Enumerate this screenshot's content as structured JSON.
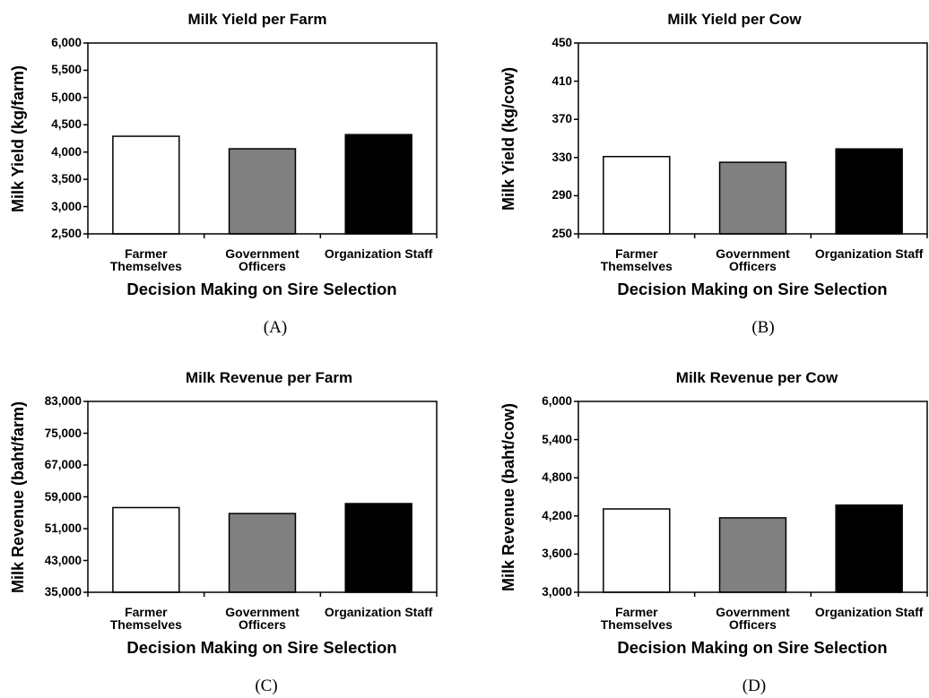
{
  "chart_data": [
    {
      "type": "bar",
      "title": "Milk Yield per Farm",
      "xlabel": "Decision Making on Sire Selection",
      "ylabel": "Milk Yield (kg/farm)",
      "caption": "(A)",
      "categories": [
        "Farmer Themselves",
        "Government Officers",
        "Organization Staff"
      ],
      "values": [
        4290,
        4060,
        4320
      ],
      "colors": [
        "#ffffff",
        "#808080",
        "#000000"
      ],
      "ylim": [
        2500,
        6000
      ],
      "yticks": [
        2500,
        3000,
        3500,
        4000,
        4500,
        5000,
        5500,
        6000
      ],
      "ytick_labels": [
        "2,500",
        "3,000",
        "3,500",
        "4,000",
        "4,500",
        "5,000",
        "5,500",
        "6,000"
      ],
      "grid": false
    },
    {
      "type": "bar",
      "title": "Milk Yield per Cow",
      "xlabel": "Decision Making on Sire Selection",
      "ylabel": "Milk Yield (kg/cow)",
      "caption": "(B)",
      "categories": [
        "Farmer Themselves",
        "Government Officers",
        "Organization Staff"
      ],
      "values": [
        331,
        325,
        339
      ],
      "colors": [
        "#ffffff",
        "#808080",
        "#000000"
      ],
      "ylim": [
        250,
        450
      ],
      "yticks": [
        250,
        290,
        330,
        370,
        410,
        450
      ],
      "ytick_labels": [
        "250",
        "290",
        "330",
        "370",
        "410",
        "450"
      ],
      "grid": false
    },
    {
      "type": "bar",
      "title": "Milk Revenue per Farm",
      "xlabel": "Decision Making on Sire Selection",
      "ylabel": "Milk Revenue (baht/farm)",
      "caption": "(C)",
      "categories": [
        "Farmer Themselves",
        "Government Officers",
        "Organization Staff"
      ],
      "values": [
        56300,
        54800,
        57300
      ],
      "colors": [
        "#ffffff",
        "#808080",
        "#000000"
      ],
      "ylim": [
        35000,
        83000
      ],
      "yticks": [
        35000,
        43000,
        51000,
        59000,
        67000,
        75000,
        83000
      ],
      "ytick_labels": [
        "35,000",
        "43,000",
        "51,000",
        "59,000",
        "67,000",
        "75,000",
        "83,000"
      ],
      "grid": false
    },
    {
      "type": "bar",
      "title": "Milk Revenue per Cow",
      "xlabel": "Decision Making on Sire Selection",
      "ylabel": "Milk Revenue (baht/cow)",
      "caption": "(D)",
      "categories": [
        "Farmer Themselves",
        "Government Officers",
        "Organization Staff"
      ],
      "values": [
        4310,
        4170,
        4370
      ],
      "colors": [
        "#ffffff",
        "#808080",
        "#000000"
      ],
      "ylim": [
        3000,
        6000
      ],
      "yticks": [
        3000,
        3600,
        4200,
        4800,
        5400,
        6000
      ],
      "ytick_labels": [
        "3,000",
        "3,600",
        "4,200",
        "4,800",
        "5,400",
        "6,000"
      ],
      "grid": false
    }
  ]
}
